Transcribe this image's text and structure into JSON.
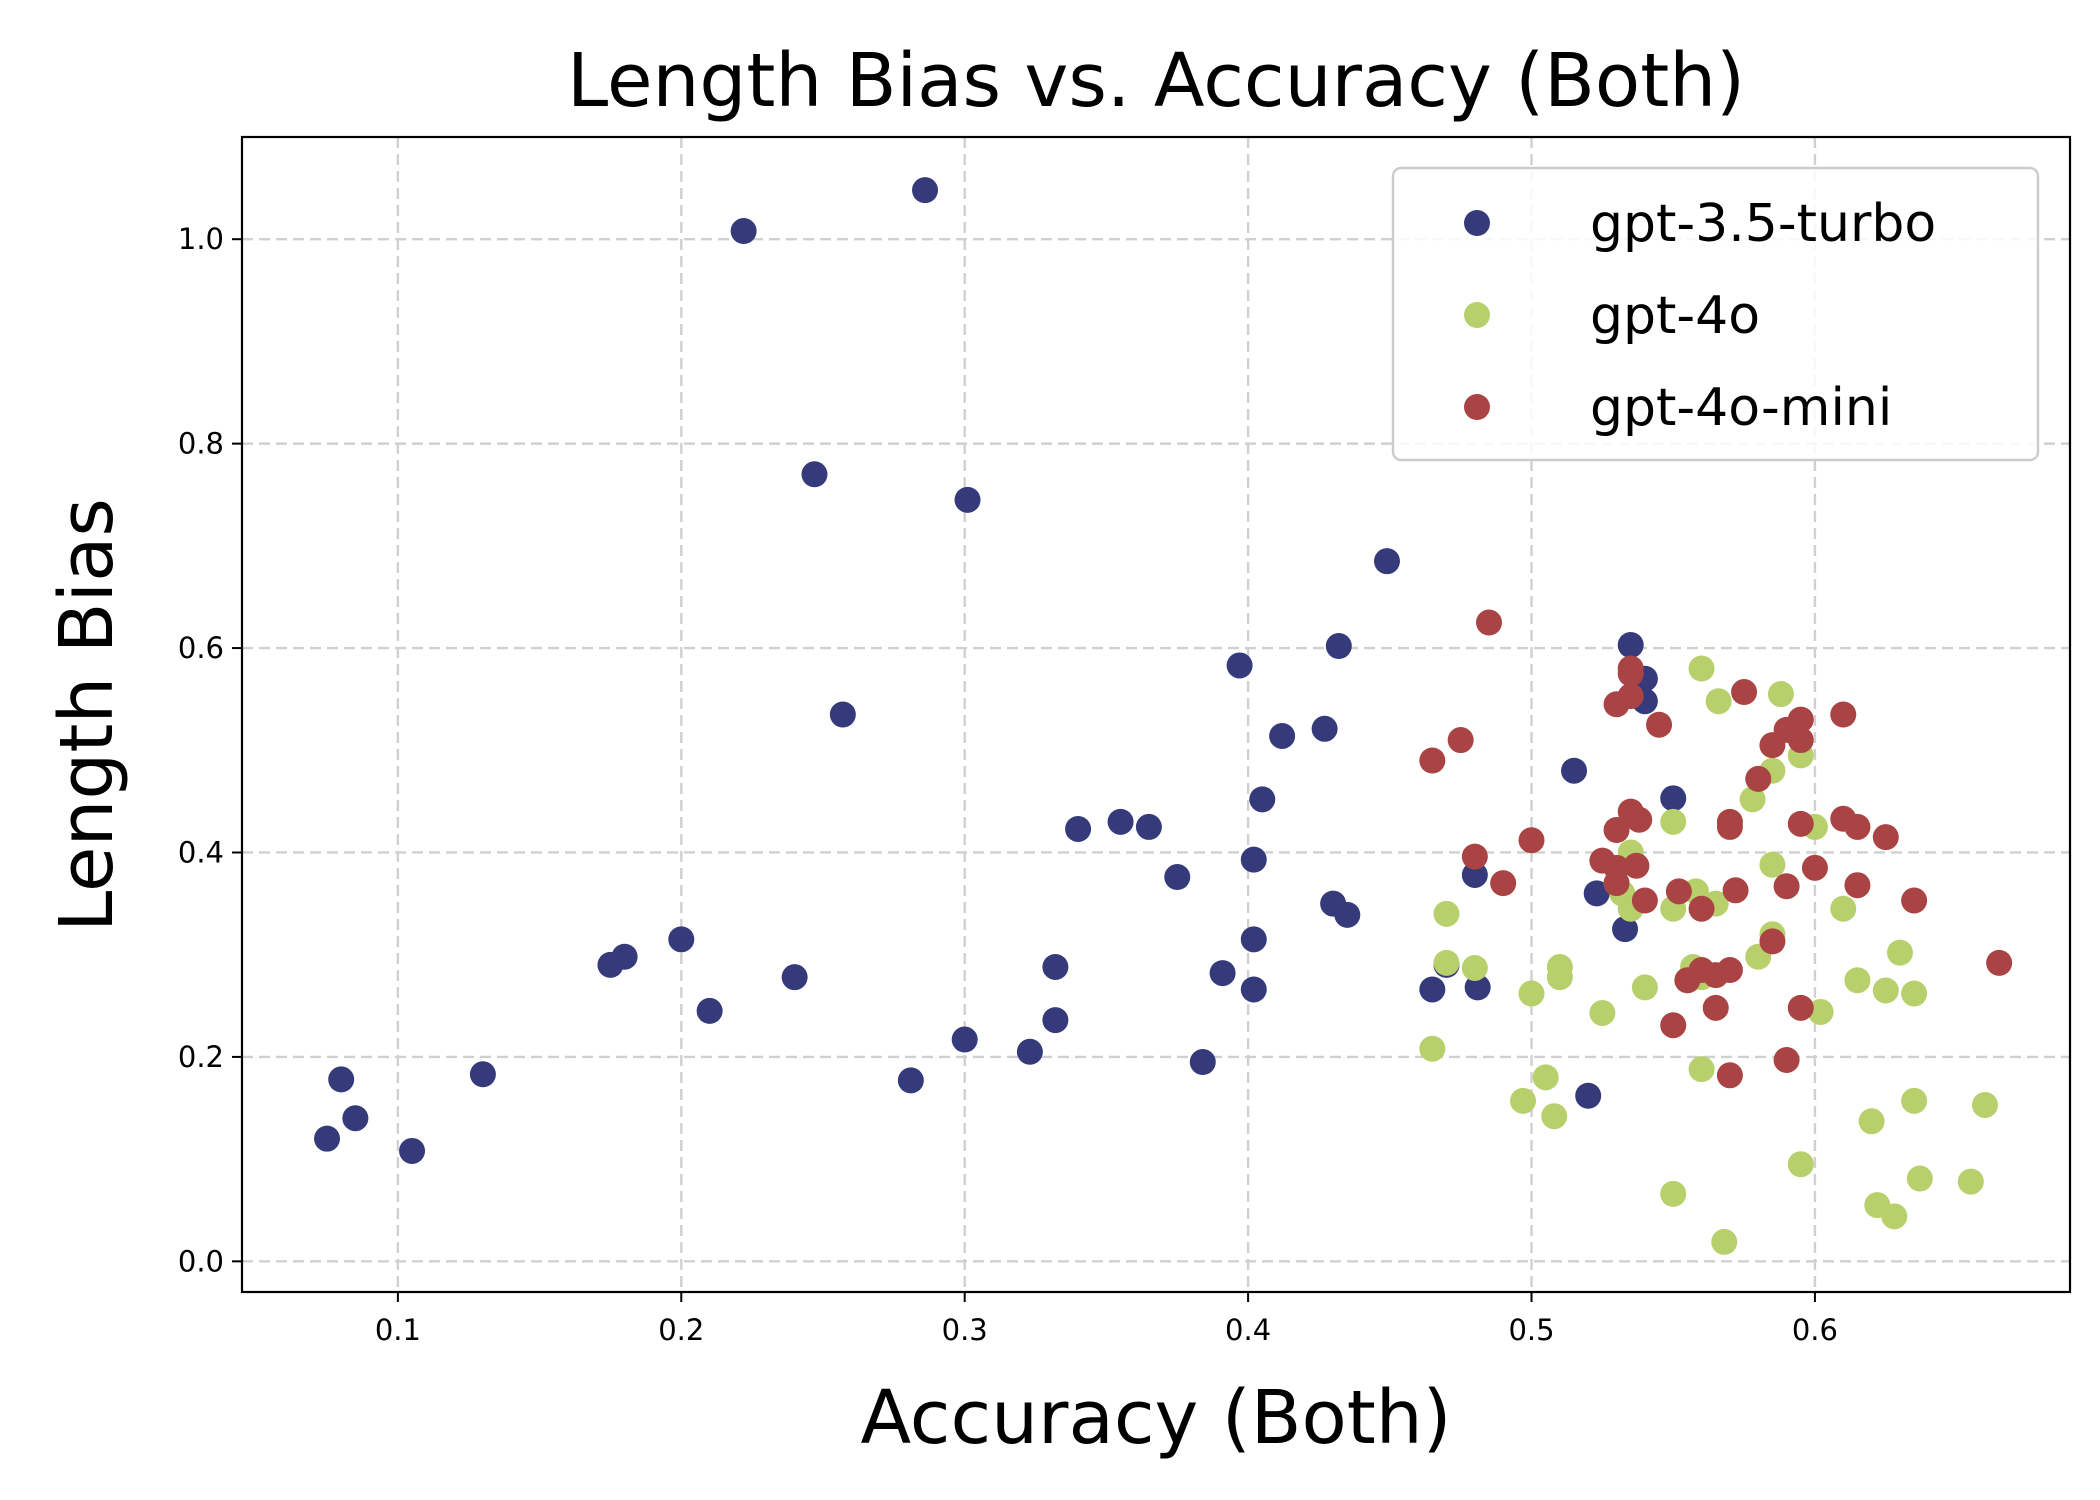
{
  "chart_data": {
    "type": "scatter",
    "title": "Length Bias vs. Accuracy (Both)",
    "xlabel": "Accuracy (Both)",
    "ylabel": "Length Bias",
    "xlim": [
      0.045,
      0.69
    ],
    "ylim": [
      -0.03,
      1.1
    ],
    "xticks": [
      0.1,
      0.2,
      0.3,
      0.4,
      0.5,
      0.6
    ],
    "xtick_labels": [
      "0.1",
      "0.2",
      "0.3",
      "0.4",
      "0.5",
      "0.6"
    ],
    "yticks": [
      0.0,
      0.2,
      0.4,
      0.6,
      0.8,
      1.0
    ],
    "ytick_labels": [
      "0.0",
      "0.2",
      "0.4",
      "0.6",
      "0.8",
      "1.0"
    ],
    "grid": true,
    "legend_position": "top-right",
    "series": [
      {
        "name": "gpt-3.5-turbo",
        "color": "#353a7a",
        "points": [
          [
            0.075,
            0.12
          ],
          [
            0.08,
            0.178
          ],
          [
            0.085,
            0.14
          ],
          [
            0.105,
            0.108
          ],
          [
            0.13,
            0.183
          ],
          [
            0.175,
            0.29
          ],
          [
            0.18,
            0.298
          ],
          [
            0.2,
            0.315
          ],
          [
            0.21,
            0.245
          ],
          [
            0.222,
            1.008
          ],
          [
            0.24,
            0.278
          ],
          [
            0.247,
            0.77
          ],
          [
            0.257,
            0.535
          ],
          [
            0.281,
            0.177
          ],
          [
            0.286,
            1.048
          ],
          [
            0.3,
            0.217
          ],
          [
            0.301,
            0.745
          ],
          [
            0.323,
            0.205
          ],
          [
            0.332,
            0.236
          ],
          [
            0.332,
            0.288
          ],
          [
            0.34,
            0.423
          ],
          [
            0.355,
            0.43
          ],
          [
            0.365,
            0.425
          ],
          [
            0.375,
            0.376
          ],
          [
            0.384,
            0.195
          ],
          [
            0.391,
            0.282
          ],
          [
            0.397,
            0.583
          ],
          [
            0.402,
            0.393
          ],
          [
            0.402,
            0.315
          ],
          [
            0.402,
            0.266
          ],
          [
            0.405,
            0.452
          ],
          [
            0.412,
            0.514
          ],
          [
            0.427,
            0.521
          ],
          [
            0.43,
            0.35
          ],
          [
            0.432,
            0.602
          ],
          [
            0.435,
            0.339
          ],
          [
            0.449,
            0.685
          ],
          [
            0.465,
            0.266
          ],
          [
            0.47,
            0.29
          ],
          [
            0.48,
            0.378
          ],
          [
            0.481,
            0.268
          ],
          [
            0.515,
            0.48
          ],
          [
            0.52,
            0.162
          ],
          [
            0.523,
            0.36
          ],
          [
            0.533,
            0.325
          ],
          [
            0.535,
            0.603
          ],
          [
            0.54,
            0.57
          ],
          [
            0.54,
            0.548
          ],
          [
            0.55,
            0.453
          ]
        ]
      },
      {
        "name": "gpt-4o",
        "color": "#b7d06c",
        "points": [
          [
            0.465,
            0.208
          ],
          [
            0.47,
            0.34
          ],
          [
            0.47,
            0.292
          ],
          [
            0.48,
            0.287
          ],
          [
            0.497,
            0.157
          ],
          [
            0.5,
            0.262
          ],
          [
            0.505,
            0.18
          ],
          [
            0.508,
            0.142
          ],
          [
            0.51,
            0.288
          ],
          [
            0.51,
            0.278
          ],
          [
            0.525,
            0.243
          ],
          [
            0.53,
            0.37
          ],
          [
            0.532,
            0.36
          ],
          [
            0.535,
            0.4
          ],
          [
            0.535,
            0.345
          ],
          [
            0.54,
            0.268
          ],
          [
            0.55,
            0.43
          ],
          [
            0.55,
            0.345
          ],
          [
            0.55,
            0.066
          ],
          [
            0.555,
            0.275
          ],
          [
            0.557,
            0.288
          ],
          [
            0.558,
            0.362
          ],
          [
            0.56,
            0.58
          ],
          [
            0.56,
            0.278
          ],
          [
            0.56,
            0.188
          ],
          [
            0.565,
            0.35
          ],
          [
            0.566,
            0.548
          ],
          [
            0.568,
            0.019
          ],
          [
            0.578,
            0.452
          ],
          [
            0.58,
            0.298
          ],
          [
            0.585,
            0.48
          ],
          [
            0.585,
            0.388
          ],
          [
            0.585,
            0.32
          ],
          [
            0.588,
            0.555
          ],
          [
            0.595,
            0.495
          ],
          [
            0.595,
            0.095
          ],
          [
            0.6,
            0.425
          ],
          [
            0.602,
            0.244
          ],
          [
            0.61,
            0.345
          ],
          [
            0.615,
            0.275
          ],
          [
            0.62,
            0.137
          ],
          [
            0.622,
            0.055
          ],
          [
            0.625,
            0.265
          ],
          [
            0.628,
            0.044
          ],
          [
            0.63,
            0.302
          ],
          [
            0.635,
            0.262
          ],
          [
            0.635,
            0.157
          ],
          [
            0.637,
            0.081
          ],
          [
            0.655,
            0.078
          ],
          [
            0.66,
            0.153
          ]
        ]
      },
      {
        "name": "gpt-4o-mini",
        "color": "#aa4444",
        "points": [
          [
            0.465,
            0.49
          ],
          [
            0.475,
            0.51
          ],
          [
            0.48,
            0.396
          ],
          [
            0.485,
            0.625
          ],
          [
            0.49,
            0.37
          ],
          [
            0.5,
            0.412
          ],
          [
            0.525,
            0.392
          ],
          [
            0.53,
            0.545
          ],
          [
            0.53,
            0.422
          ],
          [
            0.53,
            0.385
          ],
          [
            0.53,
            0.37
          ],
          [
            0.535,
            0.58
          ],
          [
            0.535,
            0.575
          ],
          [
            0.535,
            0.553
          ],
          [
            0.535,
            0.44
          ],
          [
            0.537,
            0.387
          ],
          [
            0.538,
            0.432
          ],
          [
            0.54,
            0.353
          ],
          [
            0.545,
            0.525
          ],
          [
            0.55,
            0.231
          ],
          [
            0.552,
            0.362
          ],
          [
            0.555,
            0.275
          ],
          [
            0.56,
            0.345
          ],
          [
            0.56,
            0.285
          ],
          [
            0.565,
            0.248
          ],
          [
            0.565,
            0.28
          ],
          [
            0.57,
            0.43
          ],
          [
            0.57,
            0.425
          ],
          [
            0.57,
            0.285
          ],
          [
            0.57,
            0.182
          ],
          [
            0.572,
            0.363
          ],
          [
            0.575,
            0.557
          ],
          [
            0.58,
            0.472
          ],
          [
            0.585,
            0.505
          ],
          [
            0.585,
            0.313
          ],
          [
            0.59,
            0.52
          ],
          [
            0.59,
            0.367
          ],
          [
            0.59,
            0.197
          ],
          [
            0.595,
            0.53
          ],
          [
            0.595,
            0.51
          ],
          [
            0.595,
            0.428
          ],
          [
            0.595,
            0.248
          ],
          [
            0.6,
            0.385
          ],
          [
            0.61,
            0.535
          ],
          [
            0.61,
            0.433
          ],
          [
            0.615,
            0.425
          ],
          [
            0.615,
            0.368
          ],
          [
            0.625,
            0.415
          ],
          [
            0.635,
            0.353
          ],
          [
            0.665,
            0.292
          ]
        ]
      }
    ]
  }
}
